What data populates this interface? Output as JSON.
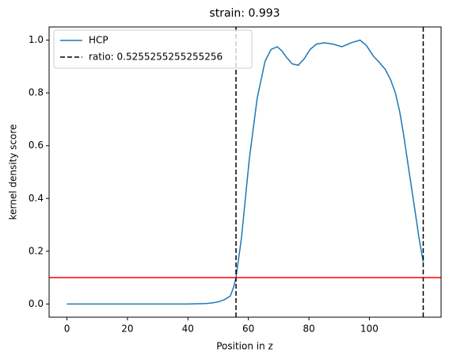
{
  "chart_data": {
    "type": "line",
    "title": "strain: 0.993",
    "x_label": "Position in z",
    "y_label": "kernel density score",
    "series": [
      {
        "name": "HCP",
        "color": "#1f77b4",
        "x": [
          0,
          10,
          20,
          30,
          40,
          44,
          46,
          48,
          50,
          52,
          54,
          55,
          55.9,
          57.7,
          60.3,
          62.9,
          65.5,
          67.5,
          69.5,
          71,
          72.6,
          74.5,
          76.5,
          78.5,
          80.4,
          82.5,
          85.1,
          88,
          90.9,
          94,
          96.9,
          99,
          101.3,
          103.3,
          105.2,
          107,
          108.6,
          110,
          111.2,
          112.5,
          113.8,
          115,
          116.4,
          117.8
        ],
        "values": [
          0,
          0,
          0,
          0,
          0,
          0.001,
          0.002,
          0.004,
          0.008,
          0.016,
          0.03,
          0.06,
          0.1,
          0.25,
          0.55,
          0.78,
          0.92,
          0.965,
          0.975,
          0.96,
          0.935,
          0.91,
          0.905,
          0.93,
          0.965,
          0.985,
          0.99,
          0.985,
          0.975,
          0.99,
          1.0,
          0.98,
          0.94,
          0.915,
          0.89,
          0.85,
          0.8,
          0.73,
          0.65,
          0.55,
          0.45,
          0.36,
          0.25,
          0.16
        ]
      }
    ],
    "vlines": {
      "name": "ratio: 0.5255255255255256",
      "color": "#000000",
      "values": [
        55.9,
        117.8
      ]
    },
    "hline": {
      "value": 0.1,
      "color": "#ff0000"
    },
    "xlim": [
      -5.9,
      123.7
    ],
    "ylim": [
      -0.05,
      1.05
    ],
    "xticks": [
      0,
      20,
      40,
      60,
      80,
      100
    ],
    "yticks": [
      {
        "value": 0,
        "label": "0.0"
      },
      {
        "value": 0.2,
        "label": "0.2"
      },
      {
        "value": 0.4,
        "label": "0.4"
      },
      {
        "value": 0.6,
        "label": "0.6"
      },
      {
        "value": 0.8,
        "label": "0.8"
      },
      {
        "value": 1,
        "label": "1.0"
      }
    ],
    "legend": "upper left"
  }
}
